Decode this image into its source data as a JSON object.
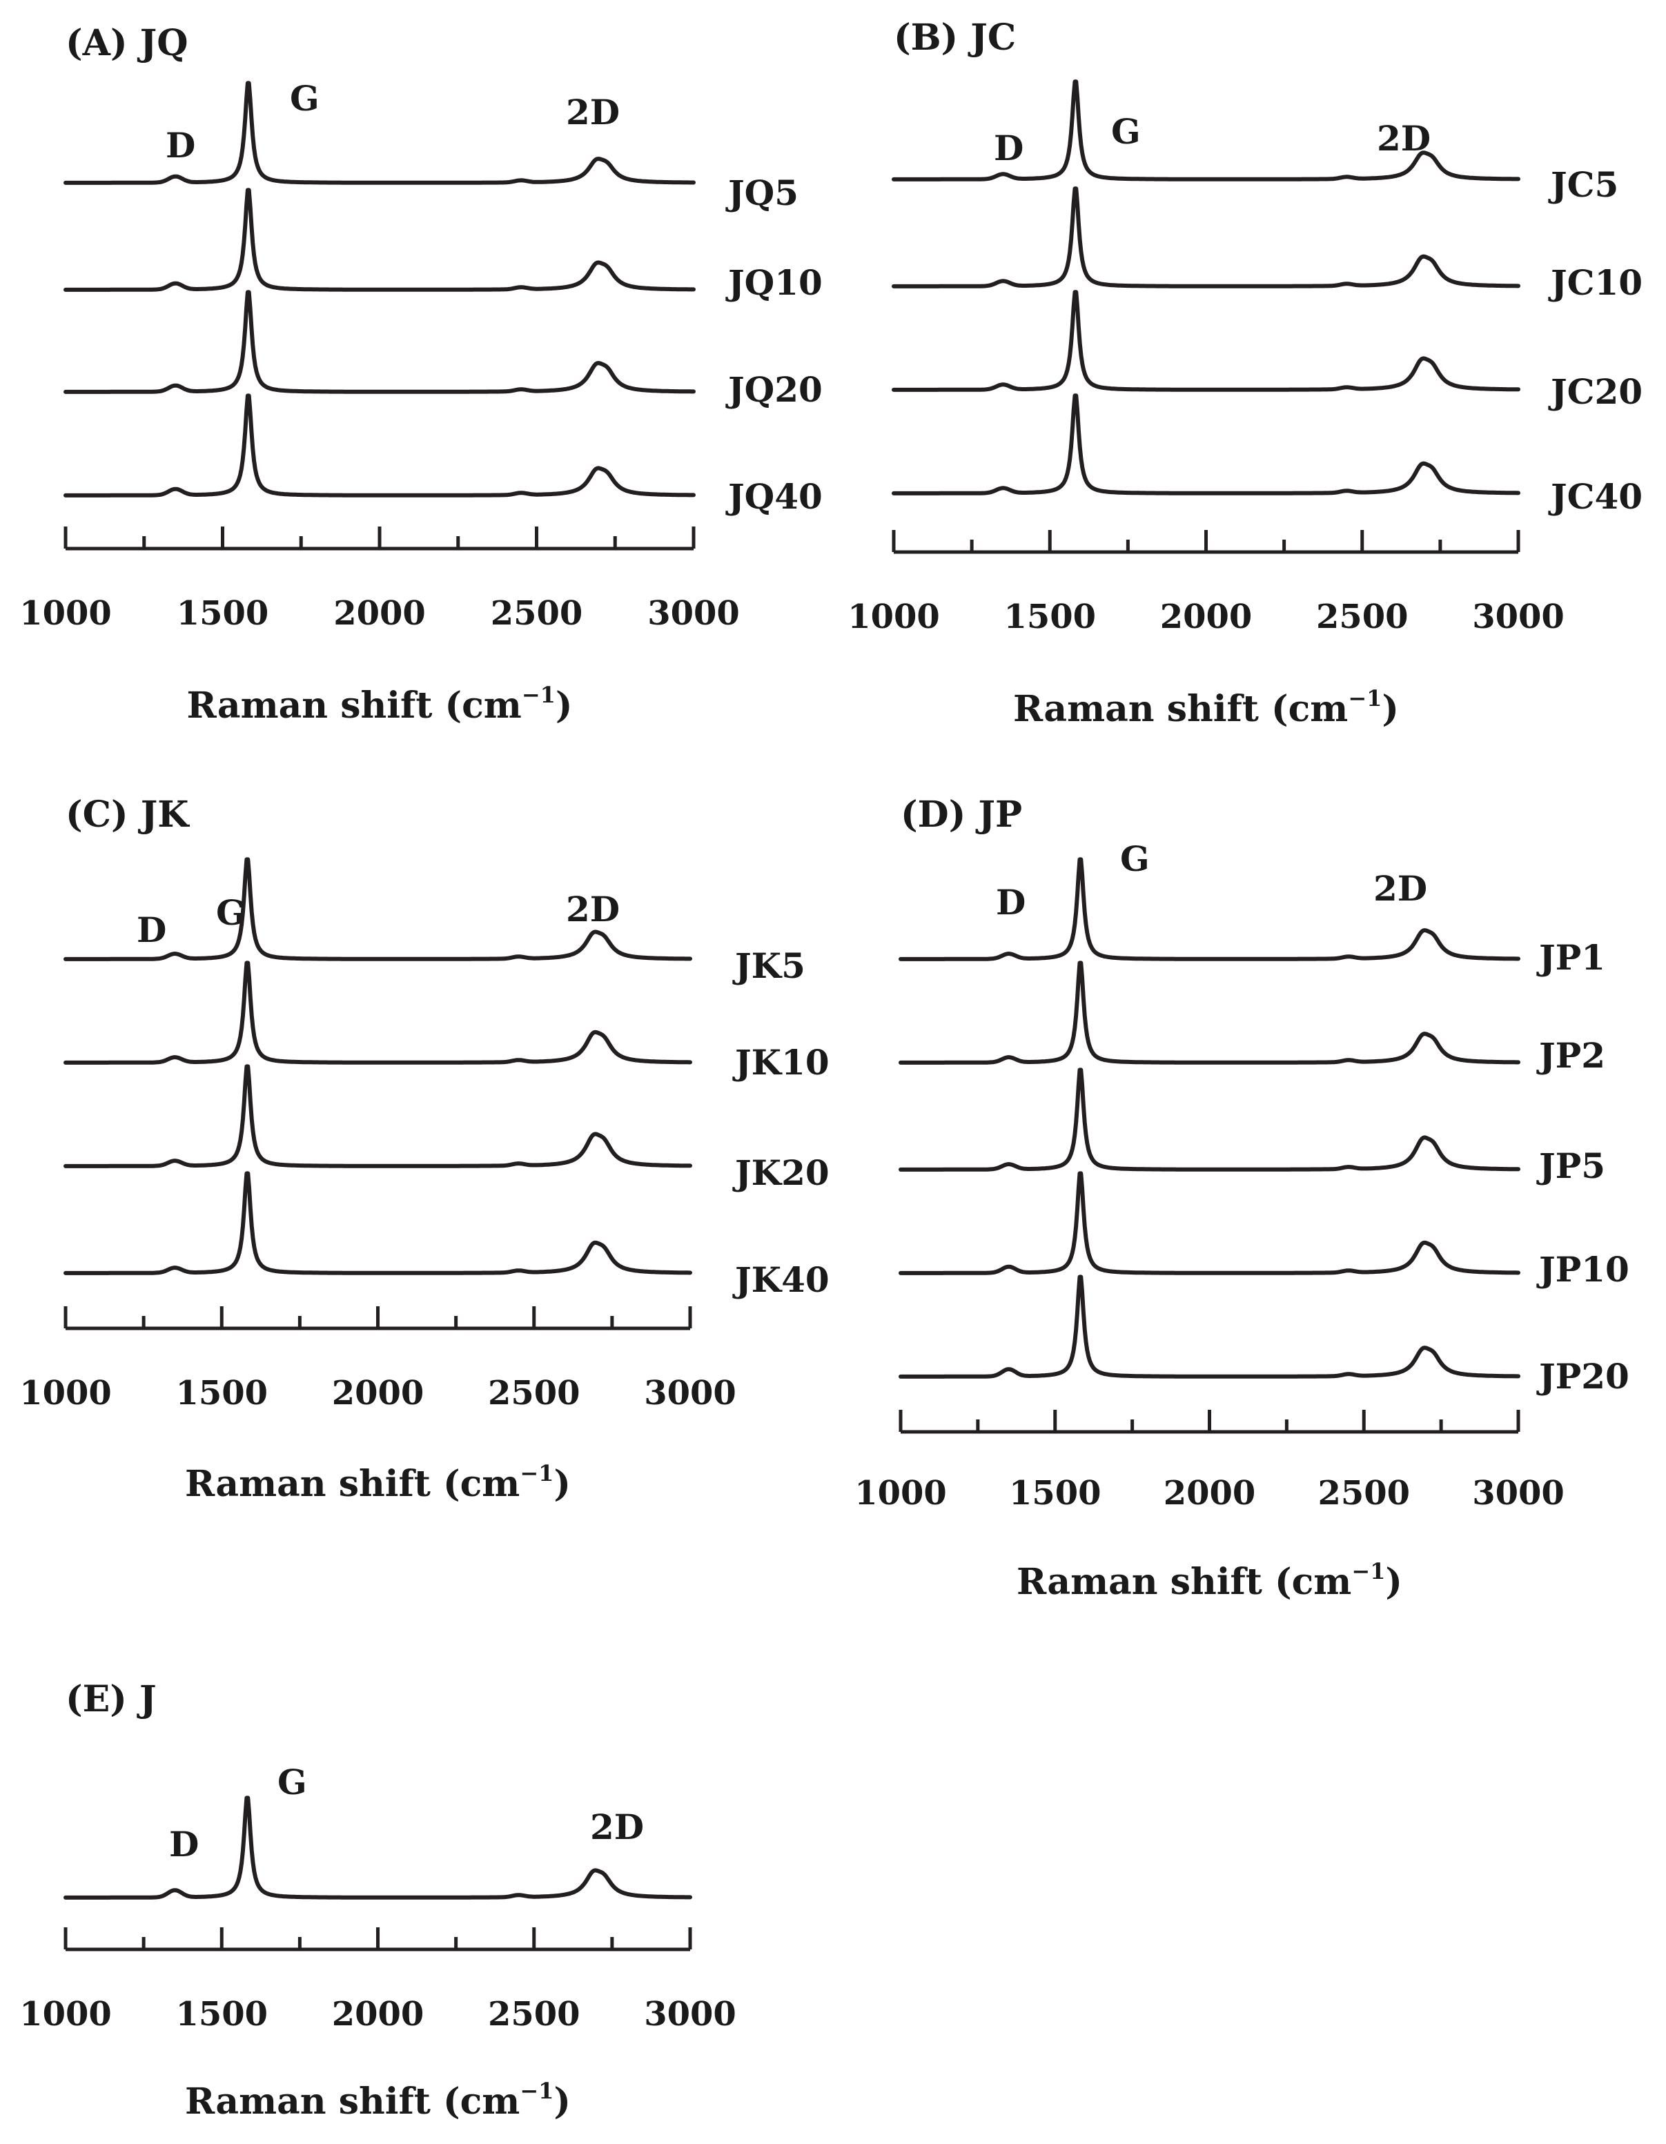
{
  "chart_data": [
    {
      "type": "line",
      "title": "(A)  JQ",
      "xlabel": "Raman shift (cm",
      "xlabel_sup": "−1",
      "xlabel_end": ")",
      "xlim": [
        1000,
        3000
      ],
      "ticks": [
        1000,
        1500,
        2000,
        2500,
        3000
      ],
      "peak_labels": {
        "D": "D",
        "G": "G",
        "2D": "2D"
      },
      "series": [
        {
          "name": "JQ5",
          "D": 0.06,
          "G": 1.0,
          "D2": 0.3
        },
        {
          "name": "JQ10",
          "D": 0.06,
          "G": 1.0,
          "D2": 0.34
        },
        {
          "name": "JQ20",
          "D": 0.06,
          "G": 1.0,
          "D2": 0.36
        },
        {
          "name": "JQ40",
          "D": 0.06,
          "G": 1.0,
          "D2": 0.34
        }
      ]
    },
    {
      "type": "line",
      "title": "(B)  JC",
      "xlabel": "Raman shift (cm",
      "xlabel_sup": "−1",
      "xlabel_end": ")",
      "xlim": [
        1000,
        3000
      ],
      "ticks": [
        1000,
        1500,
        2000,
        2500,
        3000
      ],
      "peak_labels": {
        "D": "D",
        "G": "G",
        "2D": "2D"
      },
      "series": [
        {
          "name": "JC5",
          "D": 0.05,
          "G": 1.0,
          "D2": 0.34
        },
        {
          "name": "JC10",
          "D": 0.05,
          "G": 1.0,
          "D2": 0.38
        },
        {
          "name": "JC20",
          "D": 0.05,
          "G": 1.0,
          "D2": 0.4
        },
        {
          "name": "JC40",
          "D": 0.05,
          "G": 1.0,
          "D2": 0.38
        }
      ]
    },
    {
      "type": "line",
      "title": "(C)  JK",
      "xlabel": "Raman shift (cm",
      "xlabel_sup": "−1",
      "xlabel_end": ")",
      "xlim": [
        1000,
        3000
      ],
      "ticks": [
        1000,
        1500,
        2000,
        2500,
        3000
      ],
      "peak_labels": {
        "D": "D",
        "G": "G",
        "2D": "2D"
      },
      "series": [
        {
          "name": "JK5",
          "D": 0.05,
          "G": 1.0,
          "D2": 0.34
        },
        {
          "name": "JK10",
          "D": 0.05,
          "G": 1.0,
          "D2": 0.38
        },
        {
          "name": "JK20",
          "D": 0.05,
          "G": 1.0,
          "D2": 0.4
        },
        {
          "name": "JK40",
          "D": 0.05,
          "G": 1.0,
          "D2": 0.38
        }
      ]
    },
    {
      "type": "line",
      "title": "(D)  JP",
      "xlabel": "Raman shift (cm",
      "xlabel_sup": "−1",
      "xlabel_end": ")",
      "xlim": [
        1000,
        3000
      ],
      "ticks": [
        1000,
        1500,
        2000,
        2500,
        3000
      ],
      "peak_labels": {
        "D": "D",
        "G": "G",
        "2D": "2D"
      },
      "series": [
        {
          "name": "JP1",
          "D": 0.05,
          "G": 1.0,
          "D2": 0.36
        },
        {
          "name": "JP2",
          "D": 0.05,
          "G": 1.0,
          "D2": 0.36
        },
        {
          "name": "JP5",
          "D": 0.05,
          "G": 1.0,
          "D2": 0.4
        },
        {
          "name": "JP10",
          "D": 0.06,
          "G": 1.0,
          "D2": 0.38
        },
        {
          "name": "JP20",
          "D": 0.07,
          "G": 1.0,
          "D2": 0.36
        }
      ]
    },
    {
      "type": "line",
      "title": "(E)  J",
      "xlabel": "Raman shift (cm",
      "xlabel_sup": "−1",
      "xlabel_end": ")",
      "xlim": [
        1000,
        3000
      ],
      "ticks": [
        1000,
        1500,
        2000,
        2500,
        3000
      ],
      "peak_labels": {
        "D": "D",
        "G": "G",
        "2D": "2D"
      },
      "series": [
        {
          "name": "",
          "D": 0.07,
          "G": 1.0,
          "D2": 0.34
        }
      ]
    }
  ]
}
